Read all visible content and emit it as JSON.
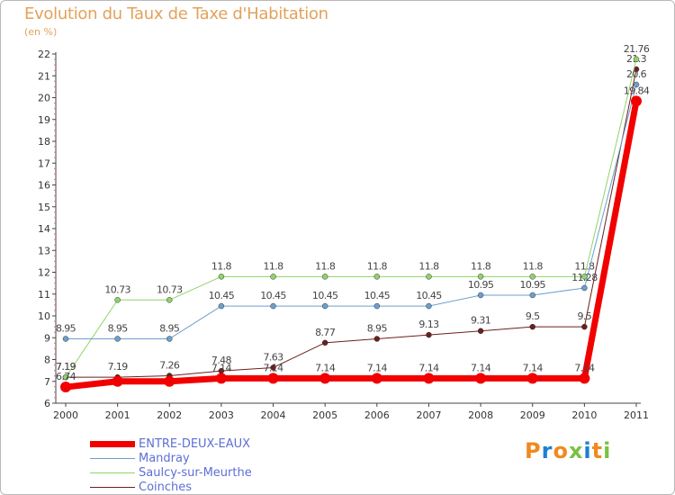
{
  "title": "Evolution du Taux de Taxe d'Habitation",
  "unit": "(en %)",
  "logo": [
    "P",
    "r",
    "o",
    "x",
    "i",
    "t",
    "i"
  ],
  "logo_colors": [
    "#f08a1e",
    "#1e7fd0",
    "#f08a1e",
    "#7ac142",
    "#1e7fd0",
    "#f08a1e",
    "#7ac142"
  ],
  "chart_data": {
    "type": "line",
    "title": "Evolution du Taux de Taxe d'Habitation",
    "ylabel": "(en %)",
    "xlabel": "",
    "ylim": [
      6,
      22
    ],
    "grid": false,
    "legend_position": "bottom-left",
    "x": [
      "2000",
      "2001",
      "2002",
      "2003",
      "2004",
      "2005",
      "2006",
      "2007",
      "2008",
      "2009",
      "2010",
      "2011"
    ],
    "y_ticks": [
      "6",
      "7",
      "8",
      "9",
      "10",
      "11",
      "12",
      "13",
      "14",
      "15",
      "16",
      "17",
      "18",
      "19",
      "20",
      "21",
      "22"
    ],
    "series": [
      {
        "name": "Coinches",
        "color": "#6b1f1f",
        "width": 1,
        "marker": 3,
        "values": [
          7.19,
          7.19,
          7.26,
          7.48,
          7.63,
          8.77,
          8.95,
          9.13,
          9.31,
          9.5,
          9.5,
          21.3
        ],
        "labels": [
          "7.19",
          "7.19",
          "7.26",
          "7.48",
          "7.63",
          "8.77",
          "8.95",
          "9.13",
          "9.31",
          "9.5",
          "9.5",
          "21.3"
        ]
      },
      {
        "name": "Saulcy-sur-Meurthe",
        "color": "#8fd46a",
        "width": 1,
        "marker": 3,
        "values": [
          7.19,
          10.73,
          10.73,
          11.8,
          11.8,
          11.8,
          11.8,
          11.8,
          11.8,
          11.8,
          11.8,
          21.76
        ],
        "labels": [
          "7.19",
          "10.73",
          "10.73",
          "11.8",
          "11.8",
          "11.8",
          "11.8",
          "11.8",
          "11.8",
          "11.8",
          "11.8",
          "21.76"
        ]
      },
      {
        "name": "Mandray",
        "color": "#6d9fcf",
        "width": 1,
        "marker": 3,
        "values": [
          8.95,
          8.95,
          8.95,
          10.45,
          10.45,
          10.45,
          10.45,
          10.45,
          10.95,
          10.95,
          11.28,
          20.6
        ],
        "labels": [
          "8.95",
          "8.95",
          "8.95",
          "10.45",
          "10.45",
          "10.45",
          "10.45",
          "10.45",
          "10.95",
          "10.95",
          "11.28",
          "20.6"
        ]
      },
      {
        "name": "ENTRE-DEUX-EAUX",
        "color": "#f20000",
        "width": 7,
        "marker": 6,
        "values": [
          6.74,
          7.0,
          7.0,
          7.14,
          7.14,
          7.14,
          7.14,
          7.14,
          7.14,
          7.14,
          7.14,
          19.84
        ],
        "labels": [
          "6.74",
          "",
          "",
          "7.14",
          "7.14",
          "7.14",
          "7.14",
          "7.14",
          "7.14",
          "7.14",
          "7.14",
          "19.84"
        ]
      }
    ],
    "legend": [
      "ENTRE-DEUX-EAUX",
      "Mandray",
      "Saulcy-sur-Meurthe",
      "Coinches"
    ]
  }
}
